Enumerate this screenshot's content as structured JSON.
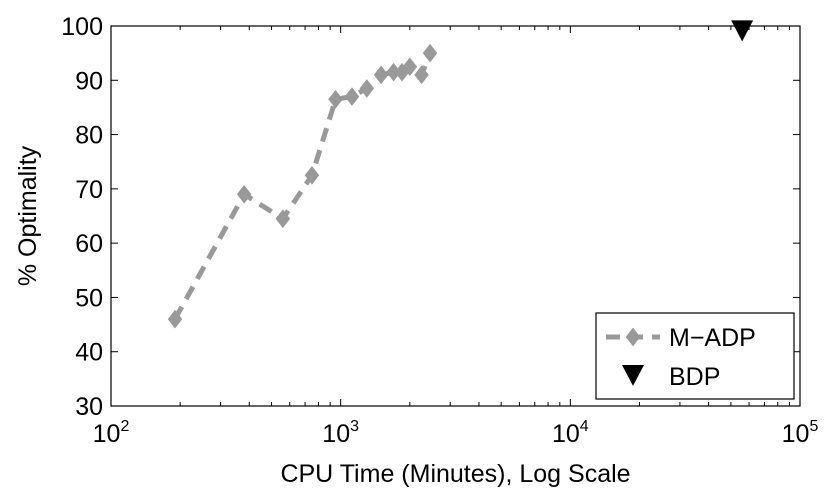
{
  "chart_data": {
    "type": "line",
    "title": "",
    "xlabel": "CPU Time (Minutes), Log Scale",
    "ylabel": "% Optimality",
    "x_scale": "log",
    "xlim": [
      100,
      100000
    ],
    "ylim": [
      30,
      100
    ],
    "x_ticks": [
      {
        "base": "10",
        "exp": "2",
        "value": 100
      },
      {
        "base": "10",
        "exp": "3",
        "value": 1000
      },
      {
        "base": "10",
        "exp": "4",
        "value": 10000
      },
      {
        "base": "10",
        "exp": "5",
        "value": 100000
      }
    ],
    "y_ticks": [
      "30",
      "40",
      "50",
      "60",
      "70",
      "80",
      "90",
      "100"
    ],
    "grid": false,
    "legend_position": "bottom-right",
    "series": [
      {
        "name": "M−ADP",
        "style": "dashed line with diamond markers",
        "color": "#999999",
        "x": [
          190,
          380,
          560,
          750,
          950,
          1120,
          1300,
          1500,
          1700,
          1850,
          2000,
          2250,
          2450
        ],
        "y": [
          46,
          69,
          64.5,
          72.5,
          86.5,
          87,
          88.5,
          91,
          91.5,
          91.5,
          92.5,
          91,
          95
        ]
      },
      {
        "name": "BDP",
        "style": "downward triangle marker",
        "color": "#000000",
        "x": [
          56000
        ],
        "y": [
          99
        ]
      }
    ]
  }
}
